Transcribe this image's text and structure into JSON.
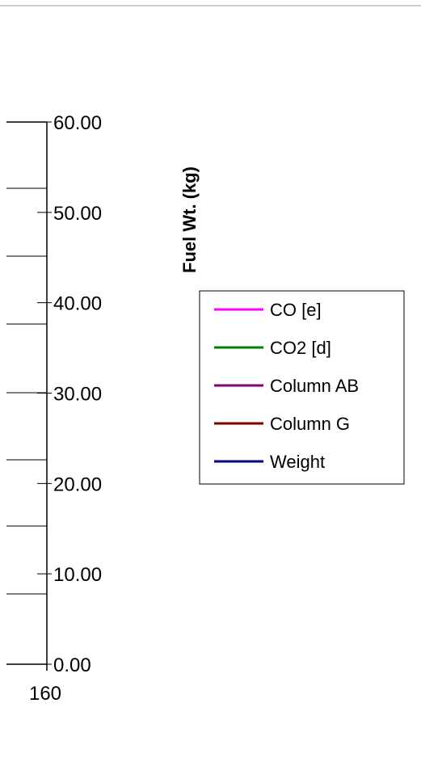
{
  "chart_data": {
    "type": "line",
    "ylabel": "Fuel Wt. (kg)",
    "ylim": [
      0,
      60
    ],
    "y_ticks": [
      "60.00",
      "50.00",
      "40.00",
      "30.00",
      "20.00",
      "10.00",
      "0.00"
    ],
    "x_ticks": [
      "160"
    ],
    "legend_position": "right",
    "series": [
      {
        "name": "CO [e]",
        "color": "#ff00ff",
        "values": []
      },
      {
        "name": "CO2 [d]",
        "color": "#008000",
        "values": []
      },
      {
        "name": "Column AB",
        "color": "#800080",
        "values": []
      },
      {
        "name": "Column G",
        "color": "#800000",
        "values": []
      },
      {
        "name": "Weight",
        "color": "#000080",
        "values": []
      }
    ]
  }
}
